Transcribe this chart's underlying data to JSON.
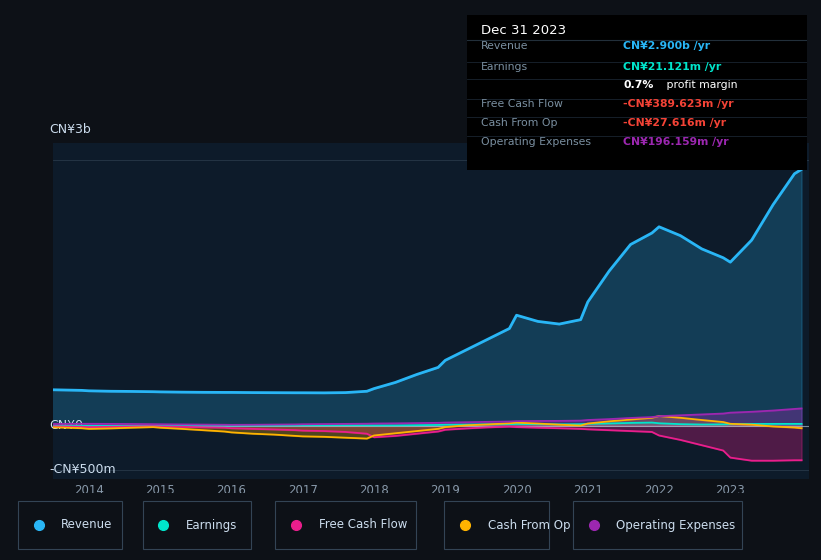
{
  "bg_color": "#0d1117",
  "plot_bg_color": "#0d1b2a",
  "ylabel_top": "CN¥3b",
  "ylabel_zero": "CN¥0",
  "ylabel_neg": "-CN¥500m",
  "years": [
    2013.3,
    2013.6,
    2013.9,
    2014.0,
    2014.3,
    2014.6,
    2014.9,
    2015.0,
    2015.3,
    2015.6,
    2015.9,
    2016.0,
    2016.3,
    2016.6,
    2016.9,
    2017.0,
    2017.3,
    2017.6,
    2017.9,
    2018.0,
    2018.3,
    2018.6,
    2018.9,
    2019.0,
    2019.3,
    2019.6,
    2019.9,
    2020.0,
    2020.3,
    2020.6,
    2020.9,
    2021.0,
    2021.3,
    2021.6,
    2021.9,
    2022.0,
    2022.3,
    2022.6,
    2022.9,
    2023.0,
    2023.3,
    2023.6,
    2023.9,
    2024.0
  ],
  "revenue": [
    410,
    405,
    400,
    395,
    390,
    388,
    385,
    383,
    380,
    378,
    377,
    377,
    375,
    374,
    373,
    373,
    372,
    375,
    390,
    420,
    490,
    580,
    660,
    740,
    860,
    980,
    1100,
    1250,
    1180,
    1150,
    1200,
    1400,
    1750,
    2050,
    2180,
    2250,
    2150,
    2000,
    1900,
    1850,
    2100,
    2500,
    2850,
    2900
  ],
  "earnings": [
    5,
    3,
    2,
    0,
    -2,
    0,
    3,
    5,
    4,
    3,
    2,
    2,
    3,
    3,
    4,
    5,
    5,
    6,
    5,
    4,
    4,
    6,
    9,
    12,
    14,
    16,
    18,
    20,
    18,
    16,
    18,
    22,
    26,
    32,
    36,
    28,
    18,
    14,
    16,
    18,
    20,
    21,
    21,
    21
  ],
  "free_cash_flow": [
    -5,
    -8,
    -12,
    -15,
    -12,
    -8,
    -5,
    -8,
    -12,
    -18,
    -22,
    -28,
    -35,
    -42,
    -50,
    -55,
    -60,
    -70,
    -90,
    -130,
    -115,
    -90,
    -65,
    -45,
    -30,
    -18,
    -10,
    -15,
    -22,
    -28,
    -35,
    -40,
    -50,
    -60,
    -70,
    -110,
    -160,
    -220,
    -280,
    -360,
    -395,
    -395,
    -390,
    -390
  ],
  "cash_from_op": [
    -15,
    -20,
    -28,
    -35,
    -30,
    -22,
    -15,
    -22,
    -35,
    -50,
    -65,
    -75,
    -90,
    -100,
    -115,
    -120,
    -125,
    -135,
    -145,
    -110,
    -85,
    -60,
    -35,
    -15,
    5,
    15,
    28,
    35,
    25,
    12,
    2,
    25,
    50,
    70,
    90,
    110,
    90,
    65,
    42,
    22,
    12,
    -8,
    -20,
    -28
  ],
  "operating_expenses": [
    18,
    20,
    22,
    22,
    21,
    20,
    18,
    17,
    15,
    13,
    11,
    10,
    11,
    13,
    15,
    17,
    19,
    21,
    23,
    25,
    27,
    30,
    33,
    36,
    40,
    44,
    48,
    52,
    54,
    55,
    58,
    65,
    75,
    88,
    98,
    108,
    118,
    128,
    138,
    148,
    158,
    172,
    190,
    196
  ],
  "revenue_color": "#29b6f6",
  "earnings_color": "#00e5cc",
  "free_cash_flow_color": "#e91e8c",
  "cash_from_op_color": "#ffb300",
  "operating_expenses_color": "#9c27b0",
  "info_box": {
    "title": "Dec 31 2023",
    "rows": [
      {
        "label": "Revenue",
        "value": "CN¥2.900b /yr",
        "value_color": "#29b6f6"
      },
      {
        "label": "Earnings",
        "value": "CN¥21.121m /yr",
        "value_color": "#00e5cc"
      },
      {
        "label": "",
        "value": "0.7% profit margin",
        "value_color": "#ffffff"
      },
      {
        "label": "Free Cash Flow",
        "value": "-CN¥389.623m /yr",
        "value_color": "#f44336"
      },
      {
        "label": "Cash From Op",
        "value": "-CN¥27.616m /yr",
        "value_color": "#f44336"
      },
      {
        "label": "Operating Expenses",
        "value": "CN¥196.159m /yr",
        "value_color": "#9c27b0"
      }
    ]
  },
  "legend": [
    {
      "label": "Revenue",
      "color": "#29b6f6"
    },
    {
      "label": "Earnings",
      "color": "#00e5cc"
    },
    {
      "label": "Free Cash Flow",
      "color": "#e91e8c"
    },
    {
      "label": "Cash From Op",
      "color": "#ffb300"
    },
    {
      "label": "Operating Expenses",
      "color": "#9c27b0"
    }
  ],
  "x_ticks": [
    2014,
    2015,
    2016,
    2017,
    2018,
    2019,
    2020,
    2021,
    2022,
    2023
  ],
  "ylim": [
    -600,
    3200
  ],
  "xlim": [
    2013.5,
    2024.1
  ]
}
